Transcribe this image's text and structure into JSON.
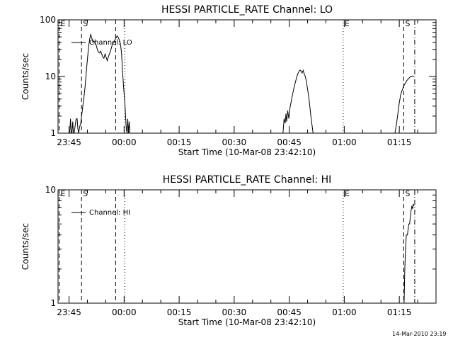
{
  "timestamp": "14-Mar-2010 23:19",
  "chart_data": [
    {
      "type": "line",
      "title": "HESSI PARTICLE_RATE Channel: LO",
      "xlabel": "Start Time (10-Mar-08 23:42:10)",
      "ylabel": "Counts/sec",
      "y_scale": "log",
      "ylim": [
        1,
        100
      ],
      "y_ticks": [
        {
          "value": 1,
          "label": "1"
        },
        {
          "value": 10,
          "label": "10"
        },
        {
          "value": 100,
          "label": "100"
        }
      ],
      "xlim_minutes": [
        0,
        103
      ],
      "x_ticks": [
        {
          "value": 3,
          "label": "23:45"
        },
        {
          "value": 18,
          "label": "00:00"
        },
        {
          "value": 33,
          "label": "00:15"
        },
        {
          "value": 48,
          "label": "00:30"
        },
        {
          "value": 63,
          "label": "00:45"
        },
        {
          "value": 78,
          "label": "01:00"
        },
        {
          "value": 93,
          "label": "01:15"
        }
      ],
      "legend": {
        "label": "Channel: LO",
        "placement": "top-left"
      },
      "markers": [
        {
          "x": 0.3,
          "style": "dashed",
          "label": "E"
        },
        {
          "x": 6.4,
          "style": "dashed",
          "label": "S"
        },
        {
          "x": 15.7,
          "style": "dashed",
          "label": ""
        },
        {
          "x": 18.2,
          "style": "dotted",
          "label": ""
        },
        {
          "x": 77.7,
          "style": "dotted",
          "label": "E"
        },
        {
          "x": 94.2,
          "style": "dashed",
          "label": "S"
        },
        {
          "x": 97.2,
          "style": "dashdot",
          "label": ""
        }
      ],
      "series": [
        {
          "name": "Channel: LO",
          "segments": [
            [
              [
                3.2,
                1
              ],
              [
                3.4,
                1.8
              ],
              [
                3.6,
                1
              ],
              [
                3.8,
                1
              ],
              [
                4.0,
                1.6
              ],
              [
                4.2,
                1
              ],
              [
                4.4,
                1
              ],
              [
                4.8,
                1.6
              ],
              [
                5.0,
                1.8
              ],
              [
                5.2,
                1.8
              ],
              [
                5.4,
                1.2
              ],
              [
                5.6,
                1
              ],
              [
                5.9,
                1.3
              ],
              [
                6.2,
                1.5
              ],
              [
                6.5,
                2.2
              ],
              [
                6.8,
                3.2
              ],
              [
                7.1,
                4.5
              ],
              [
                7.4,
                7
              ],
              [
                7.7,
                12
              ],
              [
                8.0,
                20
              ],
              [
                8.3,
                32
              ],
              [
                8.6,
                45
              ],
              [
                8.9,
                55
              ],
              [
                9.2,
                48
              ],
              [
                9.5,
                40
              ],
              [
                9.8,
                42
              ],
              [
                10.1,
                38
              ],
              [
                10.4,
                36
              ],
              [
                10.7,
                30
              ],
              [
                11.0,
                27
              ],
              [
                11.3,
                26
              ],
              [
                11.6,
                28
              ],
              [
                11.9,
                25
              ],
              [
                12.2,
                22
              ],
              [
                12.5,
                21
              ],
              [
                12.8,
                25
              ],
              [
                13.1,
                22
              ],
              [
                13.4,
                19
              ],
              [
                13.7,
                22
              ],
              [
                14.0,
                25
              ],
              [
                14.3,
                28
              ],
              [
                14.6,
                33
              ],
              [
                14.9,
                39
              ],
              [
                15.2,
                40
              ],
              [
                15.5,
                44
              ],
              [
                15.8,
                48
              ],
              [
                16.1,
                52
              ],
              [
                16.4,
                49
              ],
              [
                16.7,
                44
              ],
              [
                17.0,
                38
              ],
              [
                17.3,
                26
              ],
              [
                17.6,
                12
              ],
              [
                17.9,
                6
              ],
              [
                18.2,
                3.5
              ],
              [
                18.4,
                2
              ],
              [
                18.6,
                1.2
              ],
              [
                18.8,
                1
              ],
              [
                19.0,
                1.8
              ],
              [
                19.2,
                1
              ],
              [
                19.4,
                1.6
              ],
              [
                19.6,
                1
              ]
            ],
            [
              [
                61.3,
                1
              ],
              [
                61.6,
                1.8
              ],
              [
                61.9,
                1.5
              ],
              [
                62.1,
                2.2
              ],
              [
                62.3,
                1.6
              ],
              [
                62.6,
                2.5
              ],
              [
                62.9,
                1.8
              ],
              [
                63.2,
                2.8
              ],
              [
                63.5,
                3.5
              ],
              [
                63.8,
                4.5
              ],
              [
                64.1,
                5.5
              ],
              [
                64.4,
                6.8
              ],
              [
                64.7,
                8
              ],
              [
                65.0,
                9.5
              ],
              [
                65.3,
                11
              ],
              [
                65.6,
                12
              ],
              [
                65.9,
                13
              ],
              [
                66.2,
                12.5
              ],
              [
                66.5,
                11.5
              ],
              [
                66.8,
                12.8
              ],
              [
                67.1,
                11
              ],
              [
                67.4,
                10
              ],
              [
                67.7,
                8
              ],
              [
                68.0,
                6
              ],
              [
                68.3,
                4.5
              ],
              [
                68.6,
                3
              ],
              [
                68.9,
                2
              ],
              [
                69.2,
                1.4
              ],
              [
                69.5,
                1
              ]
            ],
            [
              [
                91.8,
                1
              ],
              [
                92.2,
                1.4
              ],
              [
                92.6,
                2.2
              ],
              [
                93.0,
                3.5
              ],
              [
                93.4,
                4.8
              ],
              [
                93.8,
                5.8
              ],
              [
                94.2,
                6.8
              ],
              [
                94.6,
                7.6
              ],
              [
                95.0,
                8.4
              ],
              [
                95.4,
                9
              ],
              [
                95.8,
                9.6
              ],
              [
                96.2,
                10
              ],
              [
                96.6,
                10.2
              ],
              [
                97.0,
                10.1
              ]
            ]
          ]
        }
      ]
    },
    {
      "type": "line",
      "title": "HESSI PARTICLE_RATE Channel: HI",
      "xlabel": "Start Time (10-Mar-08 23:42:10)",
      "ylabel": "Counts/sec",
      "y_scale": "log",
      "ylim": [
        1,
        10
      ],
      "y_ticks": [
        {
          "value": 1,
          "label": "1"
        },
        {
          "value": 10,
          "label": "10"
        }
      ],
      "xlim_minutes": [
        0,
        103
      ],
      "x_ticks": [
        {
          "value": 3,
          "label": "23:45"
        },
        {
          "value": 18,
          "label": "00:00"
        },
        {
          "value": 33,
          "label": "00:15"
        },
        {
          "value": 48,
          "label": "00:30"
        },
        {
          "value": 63,
          "label": "00:45"
        },
        {
          "value": 78,
          "label": "01:00"
        },
        {
          "value": 93,
          "label": "01:15"
        }
      ],
      "legend": {
        "label": "Channel: HI",
        "placement": "top-left"
      },
      "markers": [
        {
          "x": 0.3,
          "style": "dashed",
          "label": "E"
        },
        {
          "x": 6.4,
          "style": "dashed",
          "label": "S"
        },
        {
          "x": 15.7,
          "style": "dashed",
          "label": ""
        },
        {
          "x": 18.2,
          "style": "dotted",
          "label": ""
        },
        {
          "x": 77.7,
          "style": "dotted",
          "label": "E"
        },
        {
          "x": 94.2,
          "style": "dashed",
          "label": "S"
        },
        {
          "x": 97.2,
          "style": "dashdot",
          "label": ""
        }
      ],
      "series": [
        {
          "name": "Channel: HI",
          "segments": [
            [
              [
                94.3,
                1
              ],
              [
                94.5,
                2
              ],
              [
                94.7,
                3
              ],
              [
                94.9,
                4
              ],
              [
                95.2,
                4
              ],
              [
                95.4,
                4.5
              ],
              [
                95.6,
                5
              ],
              [
                95.8,
                5
              ],
              [
                96.0,
                5.8
              ],
              [
                96.2,
                6.5
              ],
              [
                96.4,
                7.2
              ],
              [
                96.6,
                6.8
              ],
              [
                96.8,
                7.5
              ],
              [
                97.0,
                7.2
              ]
            ]
          ]
        }
      ]
    }
  ]
}
